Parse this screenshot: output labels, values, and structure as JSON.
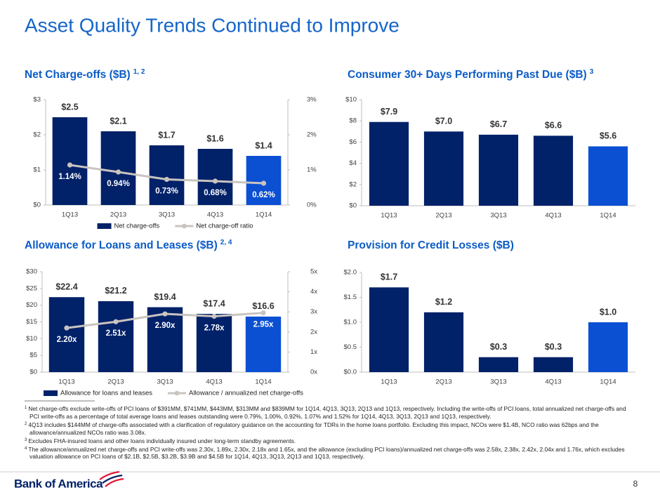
{
  "title": "Asset Quality Trends Continued to Improve",
  "chart_data": [
    {
      "type": "bar",
      "title": "Net Charge-offs ($B)",
      "title_note": "1, 2",
      "categories": [
        "1Q13",
        "2Q13",
        "3Q13",
        "4Q13",
        "1Q14"
      ],
      "series": [
        {
          "name": "Net charge-offs",
          "colors": [
            "#012169",
            "#012169",
            "#012169",
            "#012169",
            "#0b50d3"
          ],
          "values": [
            2.5,
            2.1,
            1.7,
            1.6,
            1.4
          ],
          "value_labels": [
            "$2.5",
            "$2.1",
            "$1.7",
            "$1.6",
            "$1.4"
          ]
        },
        {
          "name": "Net charge-off ratio",
          "type": "line",
          "axis": "y2",
          "color": "#c9c4bf",
          "values": [
            1.14,
            0.94,
            0.73,
            0.68,
            0.62
          ],
          "value_labels": [
            "1.14%",
            "0.94%",
            "0.73%",
            "0.68%",
            "0.62%"
          ]
        }
      ],
      "ylim": [
        0,
        3
      ],
      "yticks": [
        {
          "value": 0,
          "label": "$0"
        },
        {
          "value": 1,
          "label": "$1"
        },
        {
          "value": 2,
          "label": "$2"
        },
        {
          "value": 3,
          "label": "$3"
        }
      ],
      "y2lim": [
        0,
        3
      ],
      "y2ticks": [
        {
          "value": 0,
          "label": "0%"
        },
        {
          "value": 1,
          "label": "1%"
        },
        {
          "value": 2,
          "label": "2%"
        },
        {
          "value": 3,
          "label": "3%"
        }
      ],
      "grid": false,
      "legend": "bottom"
    },
    {
      "type": "bar",
      "title": "Consumer 30+ Days Performing Past Due ($B)",
      "title_note": "3",
      "categories": [
        "1Q13",
        "2Q13",
        "3Q13",
        "4Q13",
        "1Q14"
      ],
      "series": [
        {
          "name": "Consumer 30+ days performing past due",
          "colors": [
            "#012169",
            "#012169",
            "#012169",
            "#012169",
            "#0b50d3"
          ],
          "values": [
            7.9,
            7.0,
            6.7,
            6.6,
            5.6
          ],
          "value_labels": [
            "$7.9",
            "$7.0",
            "$6.7",
            "$6.6",
            "$5.6"
          ]
        }
      ],
      "ylim": [
        0,
        10
      ],
      "yticks": [
        {
          "value": 0,
          "label": "$0"
        },
        {
          "value": 2,
          "label": "$2"
        },
        {
          "value": 4,
          "label": "$4"
        },
        {
          "value": 6,
          "label": "$6"
        },
        {
          "value": 8,
          "label": "$8"
        },
        {
          "value": 10,
          "label": "$10"
        }
      ],
      "grid": false
    },
    {
      "type": "bar",
      "title": "Allowance for Loans and Leases ($B)",
      "title_note": "2, 4",
      "categories": [
        "1Q13",
        "2Q13",
        "3Q13",
        "4Q13",
        "1Q14"
      ],
      "series": [
        {
          "name": "Allowance for loans and leases",
          "colors": [
            "#012169",
            "#012169",
            "#012169",
            "#012169",
            "#0b50d3"
          ],
          "values": [
            22.4,
            21.2,
            19.4,
            17.4,
            16.6
          ],
          "value_labels": [
            "$22.4",
            "$21.2",
            "$19.4",
            "$17.4",
            "$16.6"
          ]
        },
        {
          "name": "Allowance / annualized net charge-offs",
          "type": "line",
          "axis": "y2",
          "color": "#c9c4bf",
          "values": [
            2.2,
            2.51,
            2.9,
            2.78,
            2.95
          ],
          "value_labels": [
            "2.20x",
            "2.51x",
            "2.90x",
            "2.78x",
            "2.95x"
          ]
        }
      ],
      "ylim": [
        0,
        30
      ],
      "yticks": [
        {
          "value": 0,
          "label": "$0"
        },
        {
          "value": 5,
          "label": "$5"
        },
        {
          "value": 10,
          "label": "$10"
        },
        {
          "value": 15,
          "label": "$15"
        },
        {
          "value": 20,
          "label": "$20"
        },
        {
          "value": 25,
          "label": "$25"
        },
        {
          "value": 30,
          "label": "$30"
        }
      ],
      "y2lim": [
        0,
        5
      ],
      "y2ticks": [
        {
          "value": 0,
          "label": "0x"
        },
        {
          "value": 1,
          "label": "1x"
        },
        {
          "value": 2,
          "label": "2x"
        },
        {
          "value": 3,
          "label": "3x"
        },
        {
          "value": 4,
          "label": "4x"
        },
        {
          "value": 5,
          "label": "5x"
        }
      ],
      "grid": false,
      "legend": "bottom"
    },
    {
      "type": "bar",
      "title": "Provision for Credit Losses ($B)",
      "categories": [
        "1Q13",
        "2Q13",
        "3Q13",
        "4Q13",
        "1Q14"
      ],
      "series": [
        {
          "name": "Provision for credit losses",
          "colors": [
            "#012169",
            "#012169",
            "#012169",
            "#012169",
            "#0b50d3"
          ],
          "values": [
            1.7,
            1.2,
            0.3,
            0.3,
            1.0
          ],
          "value_labels": [
            "$1.7",
            "$1.2",
            "$0.3",
            "$0.3",
            "$1.0"
          ]
        }
      ],
      "ylim": [
        0,
        2
      ],
      "yticks": [
        {
          "value": 0,
          "label": "$0.0"
        },
        {
          "value": 0.5,
          "label": "$0.5"
        },
        {
          "value": 1,
          "label": "$1.0"
        },
        {
          "value": 1.5,
          "label": "$1.5"
        },
        {
          "value": 2,
          "label": "$2.0"
        }
      ],
      "grid": false
    }
  ],
  "footnotes": [
    {
      "marker": "1",
      "text": "Net charge-offs exclude write-offs of PCI loans of $391MM, $741MM, $443MM, $313MM and $839MM for 1Q14, 4Q13, 3Q13, 2Q13 and 1Q13, respectively. Including the write-offs of PCI loans, total annualized net charge-offs and PCI write-offs as a percentage of total average loans and leases outstanding were 0.79%, 1.00%, 0.92%, 1.07% and 1.52% for 1Q14, 4Q13, 3Q13, 2Q13 and 1Q13, respectively."
    },
    {
      "marker": "2",
      "text": "4Q13 includes $144MM of charge-offs associated with a clarification of regulatory guidance on the accounting for TDRs in the home loans portfolio. Excluding this impact, NCOs were $1.4B, NCO ratio was 62bps and the allowance/annualized NCOs ratio was 3.08x."
    },
    {
      "marker": "3",
      "text": "Excludes FHA-insured loans and other loans individually insured under long-term standby agreements."
    },
    {
      "marker": "4",
      "text": "The allowance/annualized net charge-offs and PCI write-offs was 2.30x, 1.89x, 2.30x, 2.18x and 1.65x, and the allowance (excluding PCI loans)/annualized net charge-offs was 2.58x, 2.38x, 2.42x, 2.04x and 1.76x, which excludes valuation allowance on PCI loans of $2.1B, $2.5B, $3.2B, $3.9B and $4.5B for 1Q14, 4Q13, 3Q13, 2Q13 and 1Q13, respectively."
    }
  ],
  "footer": {
    "logo": "Bank of America",
    "page": "8"
  }
}
